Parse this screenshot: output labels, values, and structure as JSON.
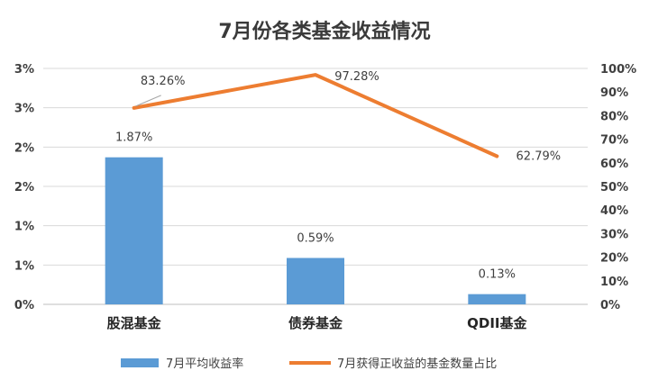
{
  "chart_data": {
    "type": "bar",
    "title": "7月份各类基金收益情况",
    "categories": [
      "股混基金",
      "债券基金",
      "QDII基金"
    ],
    "series": [
      {
        "name": "7月平均收益率",
        "type": "bar",
        "axis": "left",
        "values": [
          1.87,
          0.59,
          0.13
        ],
        "labels": [
          "1.87%",
          "0.59%",
          "0.13%"
        ],
        "color": "#5B9BD5"
      },
      {
        "name": "7月获得正收益的基金数量占比",
        "type": "line",
        "axis": "right",
        "values": [
          83.26,
          97.28,
          62.79
        ],
        "labels": [
          "83.26%",
          "97.28%",
          "62.79%"
        ],
        "color": "#ED7D31"
      }
    ],
    "left_axis": {
      "ylim": [
        0,
        3.0
      ],
      "tick_values": [
        0,
        0.5,
        1.0,
        1.5,
        2.0,
        2.5,
        3.0
      ],
      "tick_labels": [
        "0%",
        "1%",
        "1%",
        "2%",
        "2%",
        "3%",
        "3%"
      ]
    },
    "right_axis": {
      "ylim": [
        0,
        100
      ],
      "tick_values": [
        0,
        10,
        20,
        30,
        40,
        50,
        60,
        70,
        80,
        90,
        100
      ],
      "tick_labels": [
        "0%",
        "10%",
        "20%",
        "30%",
        "40%",
        "50%",
        "60%",
        "70%",
        "80%",
        "90%",
        "100%"
      ]
    },
    "grid": true,
    "legend_position": "bottom"
  }
}
